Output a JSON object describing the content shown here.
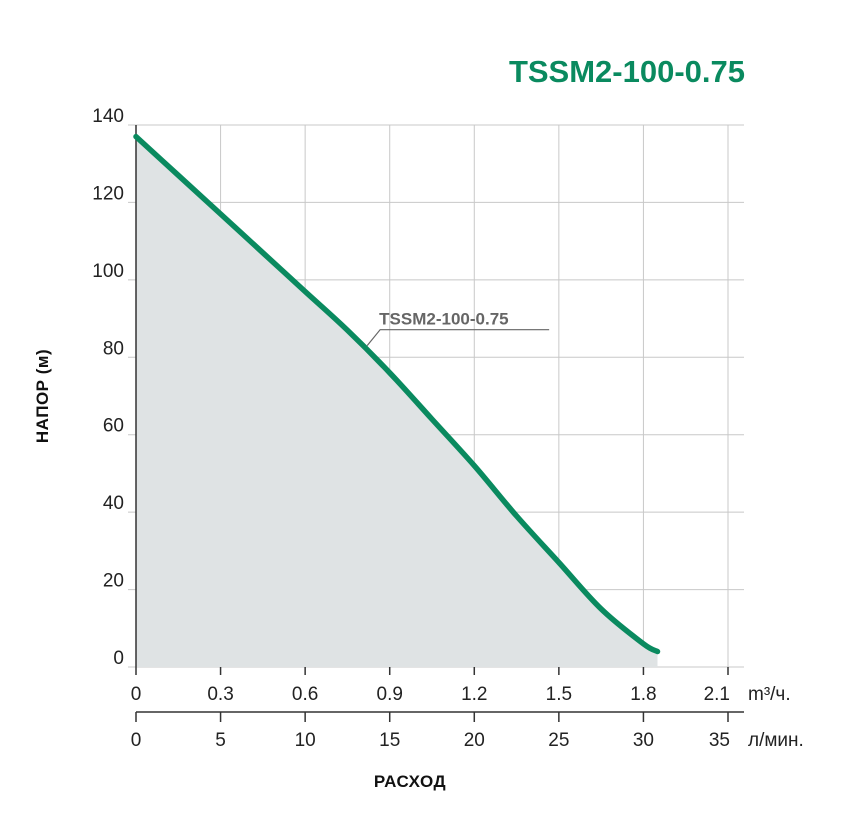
{
  "colors": {
    "accent": "#0a8a5f",
    "fill_area": "#dfe3e4",
    "grid": "#c8c8c8",
    "axis": "#333333",
    "annotation": "#666666"
  },
  "chart_data": {
    "type": "line",
    "title": "TSSM2-100-0.75",
    "ylabel": "НАПОР (м)",
    "xlabel": "РАСХОД",
    "ylim": [
      0,
      140
    ],
    "xlim": [
      0,
      2.1
    ],
    "y_ticks": [
      "0",
      "20",
      "40",
      "60",
      "80",
      "100",
      "120",
      "140"
    ],
    "x_ticks_m3h": [
      "0",
      "0.3",
      "0.6",
      "0.9",
      "1.2",
      "1.5",
      "1.8",
      "2.1"
    ],
    "x_unit_m3h": "m³/ч.",
    "x_ticks_lmin": [
      "0",
      "5",
      "10",
      "15",
      "20",
      "25",
      "30",
      "35"
    ],
    "x_unit_lmin": "л/мин.",
    "grid": true,
    "area_fill": true,
    "series": [
      {
        "name": "TSSM2-100-0.75",
        "x": [
          0,
          0.15,
          0.3,
          0.45,
          0.6,
          0.75,
          0.9,
          1.05,
          1.2,
          1.35,
          1.5,
          1.65,
          1.8,
          1.85
        ],
        "y": [
          137,
          127,
          117,
          107,
          97,
          87,
          76,
          64,
          52,
          39,
          27,
          15,
          6,
          4
        ]
      }
    ],
    "annotations": [
      {
        "text": "TSSM2-100-0.75",
        "x": 0.82,
        "y": 83
      }
    ]
  }
}
